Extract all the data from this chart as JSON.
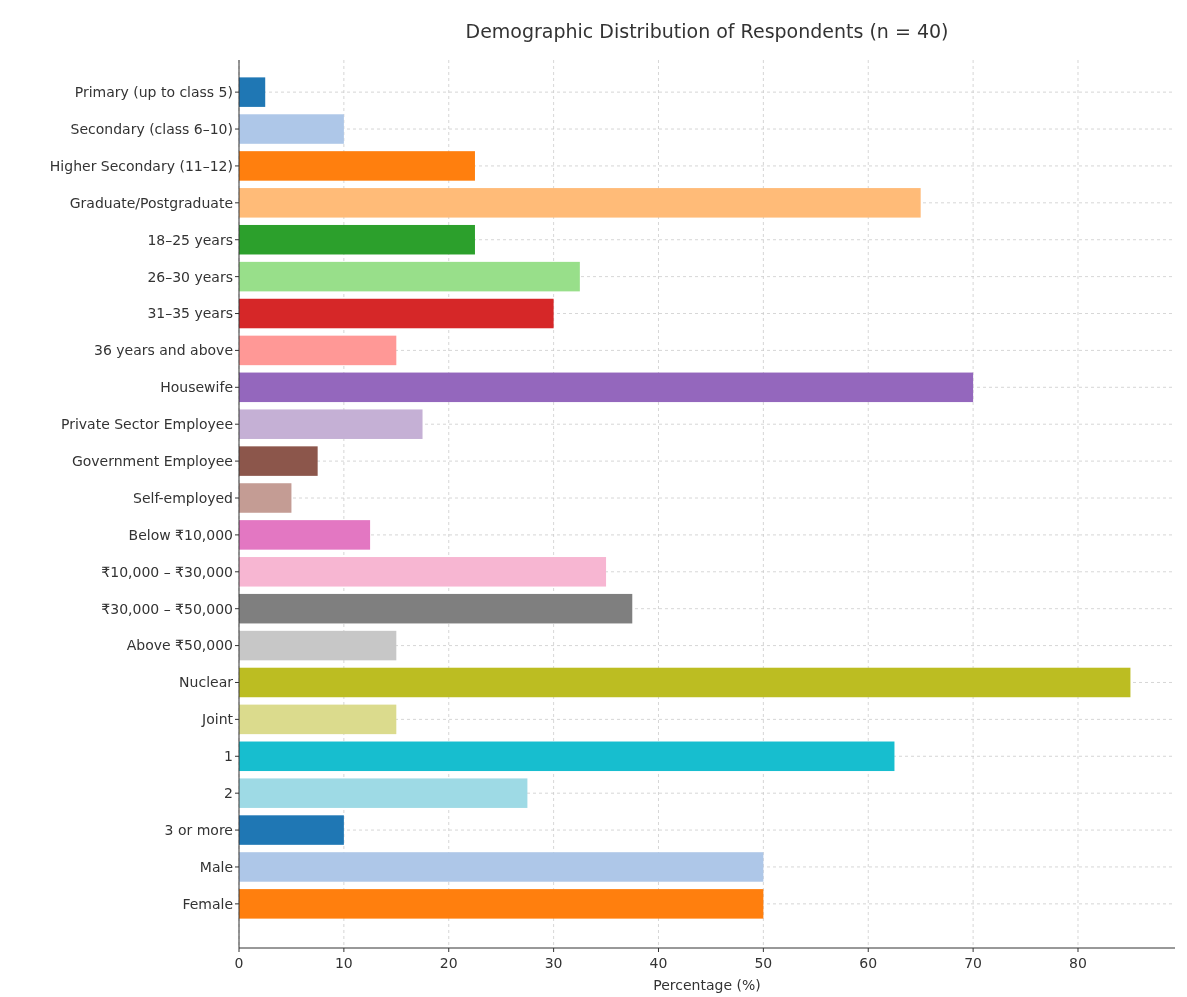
{
  "chart_data": {
    "type": "bar",
    "orientation": "horizontal",
    "title": "Demographic Distribution of Respondents (n = 40)",
    "xlabel": "Percentage (%)",
    "categories": [
      "Primary (up to class 5)",
      "Secondary (class 6–10)",
      "Higher Secondary (11–12)",
      "Graduate/Postgraduate",
      "18–25 years",
      "26–30 years",
      "31–35 years",
      "36 years and above",
      "Housewife",
      "Private Sector Employee",
      "Government Employee",
      "Self-employed",
      "Below ₹10,000",
      "₹10,000 – ₹30,000",
      "₹30,000 – ₹50,000",
      "Above ₹50,000",
      "Nuclear",
      "Joint",
      "1",
      "2",
      "3 or more",
      "Male",
      "Female"
    ],
    "values": [
      2.5,
      10,
      22.5,
      65,
      22.5,
      32.5,
      30,
      15,
      70,
      17.5,
      7.5,
      5,
      12.5,
      35,
      37.5,
      15,
      85,
      15,
      62.5,
      27.5,
      10,
      50,
      50
    ],
    "colors": [
      "#1f77b4",
      "#aec7e8",
      "#ff7f0e",
      "#ffbb78",
      "#2ca02c",
      "#98df8a",
      "#d62728",
      "#ff9896",
      "#9467bd",
      "#c5b0d5",
      "#8c564b",
      "#c49c94",
      "#e377c2",
      "#f7b6d2",
      "#7f7f7f",
      "#c7c7c7",
      "#bcbd22",
      "#dbdb8d",
      "#17becf",
      "#9edae5",
      "#1f77b4",
      "#aec7e8",
      "#ff7f0e"
    ],
    "xlim": [
      0,
      89.25
    ],
    "xticks": [
      0,
      10,
      20,
      30,
      40,
      50,
      60,
      70,
      80
    ],
    "grid": true
  }
}
